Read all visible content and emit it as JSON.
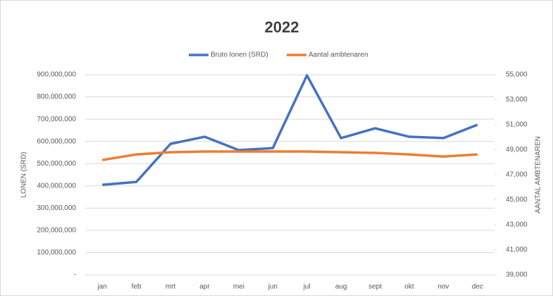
{
  "chart_data": {
    "type": "line",
    "title": "2022",
    "categories": [
      "jan",
      "feb",
      "mrt",
      "apr",
      "mei",
      "jun",
      "jul",
      "aug",
      "sept",
      "okt",
      "nov",
      "dec"
    ],
    "series": [
      {
        "name": "Bruto lonen (SRD)",
        "color": "#4472c4",
        "values": [
          405000000,
          418000000,
          589000000,
          621000000,
          561000000,
          570000000,
          897000000,
          615000000,
          659000000,
          621000000,
          615000000,
          675000000
        ]
      },
      {
        "name": "Aantal ambtenaren",
        "color": "#ed7d31",
        "axis": "y2",
        "values": [
          48180,
          48630,
          48800,
          48860,
          48860,
          48860,
          48860,
          48800,
          48750,
          48630,
          48460,
          48630
        ]
      }
    ],
    "y_label": "LONEN (SRD)",
    "y2_label": "AANTAL AMBTENAREN",
    "ylim": [
      0,
      900000000
    ],
    "yticks": [
      {
        "value": 0,
        "label": "-"
      },
      {
        "value": 100000000,
        "label": "100,000,000"
      },
      {
        "value": 200000000,
        "label": "200,000,000"
      },
      {
        "value": 300000000,
        "label": "300,000,000"
      },
      {
        "value": 400000000,
        "label": "400,000,000"
      },
      {
        "value": 500000000,
        "label": "500,000,000"
      },
      {
        "value": 600000000,
        "label": "600,000,000"
      },
      {
        "value": 700000000,
        "label": "700,000,000"
      },
      {
        "value": 800000000,
        "label": "800,000,000"
      },
      {
        "value": 900000000,
        "label": "900,000,000"
      }
    ],
    "y2lim": [
      39000,
      55000
    ],
    "y2ticks": [
      {
        "value": 39000,
        "label": "39,000"
      },
      {
        "value": 41000,
        "label": "41,000"
      },
      {
        "value": 43000,
        "label": "43,000"
      },
      {
        "value": 45000,
        "label": "45,000"
      },
      {
        "value": 47000,
        "label": "47,000"
      },
      {
        "value": 49000,
        "label": "49,000"
      },
      {
        "value": 51000,
        "label": "51,000"
      },
      {
        "value": 53000,
        "label": "53,000"
      },
      {
        "value": 55000,
        "label": "55,000"
      }
    ],
    "grid": true,
    "legend": "top"
  }
}
